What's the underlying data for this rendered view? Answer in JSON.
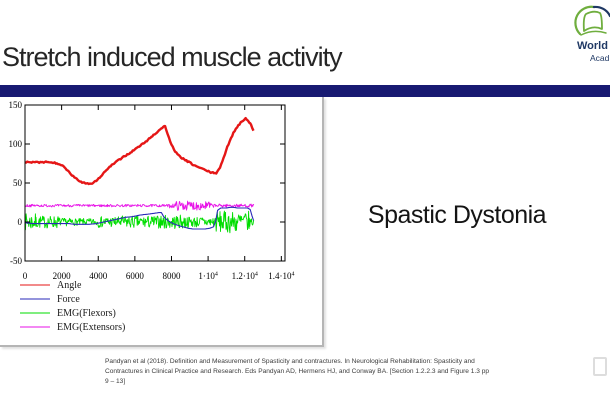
{
  "title": "Stretch induced muscle activity",
  "logo": {
    "line1": "World",
    "line2": "Acad",
    "icon": "book-arc-icon",
    "green": "#6fae3e",
    "navy": "#1f3864"
  },
  "divider_color": "#181a72",
  "main": {
    "heading": "Spastic Dystonia"
  },
  "citation": {
    "line1": "Pandyan et al (2018). Definition and Measurement of Spasticity and contractures. In Neurological Rehabilitation: Spasticity and",
    "line2": "Contractures in Clinical Practice and Research. Eds Pandyan AD, Hermens HJ, and Conway BA.  [Section 1.2.2.3 and Figure 1.3 pp",
    "line3": "9 – 13]"
  },
  "chart_data": {
    "type": "line",
    "title": "",
    "xlabel": "",
    "ylabel": "",
    "xlim": [
      0,
      14200
    ],
    "ylim": [
      -50,
      150
    ],
    "x_tick_values": [
      0,
      2000,
      4000,
      6000,
      8000,
      10000,
      12000,
      14000
    ],
    "x_tick_labels": [
      "0",
      "2000",
      "4000",
      "6000",
      "8000",
      "1·10^4",
      "1.2·10^4",
      "1.4·10^4"
    ],
    "y_tick_values": [
      -50,
      0,
      50,
      100,
      150
    ],
    "grid": false,
    "legend_position": "bottom-left",
    "legend": [
      {
        "label": "Angle",
        "color": "#e51616"
      },
      {
        "label": "Force",
        "color": "#2a2ab8"
      },
      {
        "label": "EMG(Flexors)",
        "color": "#00dd00"
      },
      {
        "label": "EMG(Extensors)",
        "color": "#e813e8"
      }
    ],
    "series": [
      {
        "name": "EMG(Flexors)",
        "kind": "noise-band",
        "color": "#00dd00",
        "width": 0.9,
        "center": 0,
        "step": 30,
        "segments": [
          [
            0,
            600,
            11
          ],
          [
            600,
            1900,
            8
          ],
          [
            1900,
            2600,
            5
          ],
          [
            2600,
            3900,
            4.5
          ],
          [
            3900,
            5200,
            7
          ],
          [
            5200,
            7400,
            8
          ],
          [
            7400,
            8800,
            9
          ],
          [
            8800,
            10350,
            7
          ],
          [
            10350,
            12250,
            14
          ],
          [
            12250,
            12500,
            6
          ]
        ]
      },
      {
        "name": "EMG(Extensors)",
        "kind": "noise-band",
        "color": "#e813e8",
        "width": 0.9,
        "center": 21,
        "step": 30,
        "segments": [
          [
            0,
            7900,
            1.6
          ],
          [
            7900,
            8250,
            3
          ],
          [
            8250,
            10150,
            6
          ],
          [
            10150,
            11000,
            2.2
          ],
          [
            11000,
            12500,
            2
          ]
        ]
      },
      {
        "name": "Force",
        "kind": "line",
        "color": "#2a2ab8",
        "width": 1.1,
        "noise": 0,
        "points": [
          [
            0,
            -1
          ],
          [
            400,
            -2
          ],
          [
            800,
            -2
          ],
          [
            1200,
            -2
          ],
          [
            1600,
            -2
          ],
          [
            2000,
            -2
          ],
          [
            2400,
            -2
          ],
          [
            2700,
            -3
          ],
          [
            3100,
            -3
          ],
          [
            3500,
            -3
          ],
          [
            3900,
            -2
          ],
          [
            4300,
            0
          ],
          [
            4700,
            2
          ],
          [
            5100,
            4
          ],
          [
            5500,
            6
          ],
          [
            5900,
            7
          ],
          [
            6300,
            9
          ],
          [
            6700,
            10
          ],
          [
            7000,
            11
          ],
          [
            7300,
            12
          ],
          [
            7450,
            12
          ],
          [
            7600,
            6
          ],
          [
            7800,
            2
          ],
          [
            8000,
            -1
          ],
          [
            8300,
            -4
          ],
          [
            8600,
            -6
          ],
          [
            8900,
            -8
          ],
          [
            9200,
            -9
          ],
          [
            9500,
            -9
          ],
          [
            9800,
            -9
          ],
          [
            10100,
            -8
          ],
          [
            10300,
            -6
          ],
          [
            10420,
            2
          ],
          [
            10520,
            15
          ],
          [
            10700,
            18
          ],
          [
            11000,
            18
          ],
          [
            11300,
            19
          ],
          [
            11600,
            18
          ],
          [
            11900,
            18
          ],
          [
            12150,
            18
          ],
          [
            12300,
            16
          ],
          [
            12400,
            8
          ],
          [
            12480,
            2
          ]
        ]
      },
      {
        "name": "Angle",
        "kind": "line",
        "color": "#e51616",
        "width": 2.4,
        "noise": 0.9,
        "points": [
          [
            0,
            77
          ],
          [
            300,
            76
          ],
          [
            600,
            77
          ],
          [
            900,
            76
          ],
          [
            1200,
            77
          ],
          [
            1500,
            76
          ],
          [
            1800,
            75
          ],
          [
            2100,
            71
          ],
          [
            2400,
            64
          ],
          [
            2700,
            57
          ],
          [
            3000,
            52
          ],
          [
            3300,
            50
          ],
          [
            3600,
            49
          ],
          [
            3900,
            53
          ],
          [
            4200,
            60
          ],
          [
            4500,
            68
          ],
          [
            4800,
            74
          ],
          [
            5100,
            79
          ],
          [
            5400,
            84
          ],
          [
            5700,
            88
          ],
          [
            6000,
            93
          ],
          [
            6300,
            98
          ],
          [
            6600,
            103
          ],
          [
            6900,
            109
          ],
          [
            7200,
            115
          ],
          [
            7500,
            121
          ],
          [
            7650,
            123
          ],
          [
            7800,
            112
          ],
          [
            8000,
            99
          ],
          [
            8200,
            90
          ],
          [
            8400,
            85
          ],
          [
            8700,
            80
          ],
          [
            9000,
            76
          ],
          [
            9300,
            72
          ],
          [
            9600,
            69
          ],
          [
            9900,
            66
          ],
          [
            10200,
            63
          ],
          [
            10450,
            63
          ],
          [
            10650,
            70
          ],
          [
            10850,
            82
          ],
          [
            11050,
            96
          ],
          [
            11250,
            108
          ],
          [
            11450,
            117
          ],
          [
            11650,
            124
          ],
          [
            11850,
            129
          ],
          [
            12050,
            133
          ],
          [
            12200,
            130
          ],
          [
            12350,
            124
          ],
          [
            12480,
            117
          ]
        ]
      }
    ]
  }
}
